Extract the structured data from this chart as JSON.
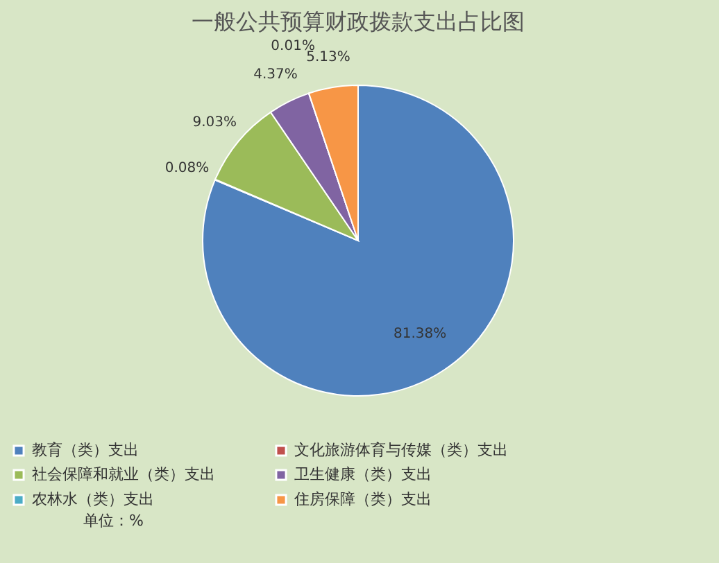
{
  "chart_data": {
    "type": "pie",
    "title": "一般公共预算财政拨款支出占比图",
    "categories": [
      "教育（类）支出",
      "文化旅游体育与传媒（类）支出",
      "社会保障和就业（类）支出",
      "卫生健康（类）支出",
      "农林水（类）支出",
      "住房保障（类）支出"
    ],
    "values": [
      81.38,
      0.08,
      9.03,
      4.37,
      0.01,
      5.13
    ],
    "colors": [
      "#4f81bd",
      "#c0504d",
      "#9bbb59",
      "#8064a2",
      "#4bacc6",
      "#f79646"
    ],
    "value_labels": [
      "81.38%",
      "0.08%",
      "9.03%",
      "4.37%",
      "0.01%",
      "5.13%"
    ],
    "legend": "bottom",
    "annotations": [
      "单位：%"
    ]
  }
}
